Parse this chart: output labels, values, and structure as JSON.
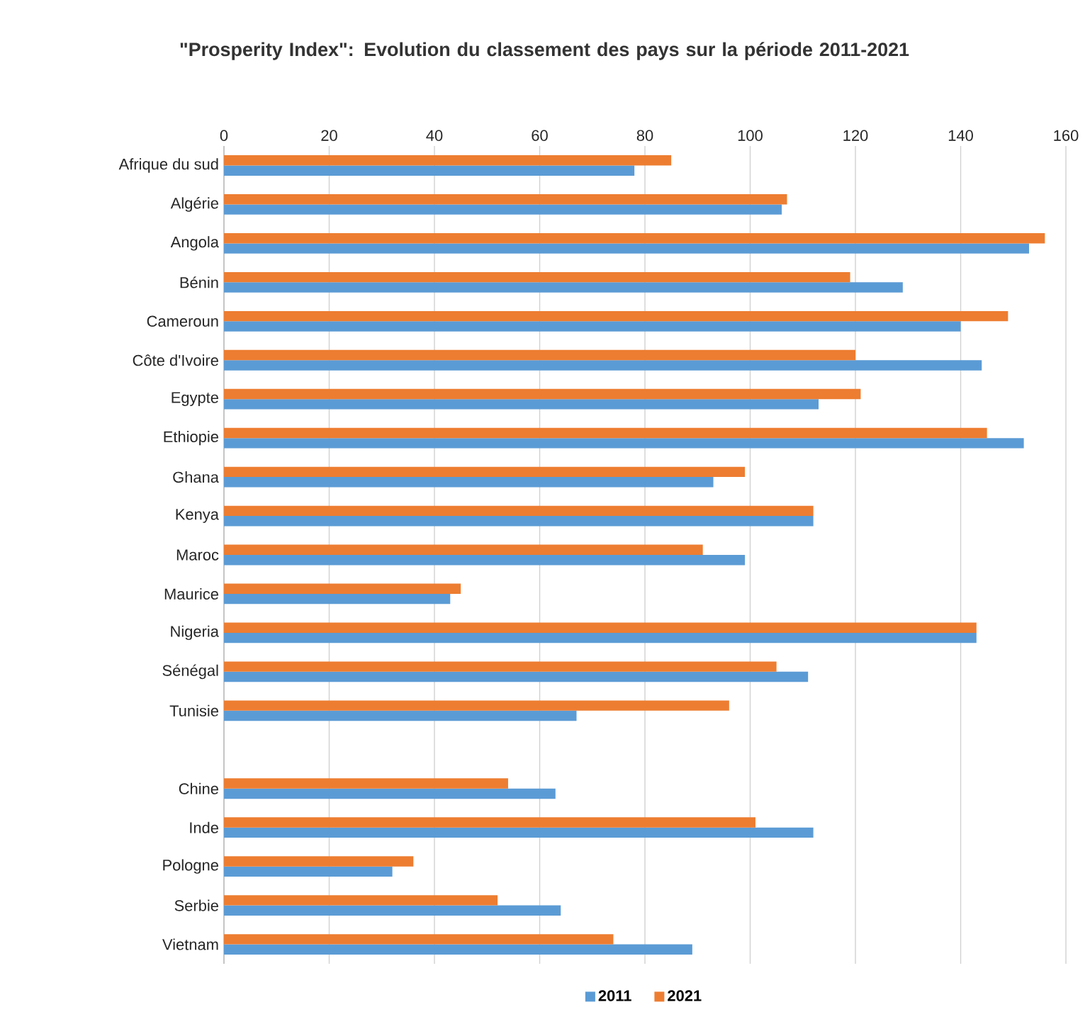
{
  "chart_data": {
    "type": "bar",
    "orientation": "horizontal",
    "title": "\"Prosperity Index\": Evolution du classement des pays sur la période 2011-2021",
    "categories": [
      "Afrique du sud",
      "Algérie",
      "Angola",
      "Bénin",
      "Cameroun",
      "Côte d'Ivoire",
      "Egypte",
      "Ethiopie",
      "Ghana",
      "Kenya",
      "Maroc",
      "Maurice",
      "Nigeria",
      "Sénégal",
      "Tunisie",
      null,
      "Chine",
      "Inde",
      "Pologne",
      "Serbie",
      "Vietnam"
    ],
    "series": [
      {
        "name": "2011",
        "color": "#5b9bd5",
        "values": [
          78,
          106,
          153,
          129,
          140,
          144,
          113,
          152,
          93,
          112,
          99,
          43,
          143,
          111,
          67,
          null,
          63,
          112,
          32,
          64,
          89
        ]
      },
      {
        "name": "2021",
        "color": "#ed7d31",
        "values": [
          85,
          107,
          156,
          119,
          149,
          120,
          121,
          145,
          99,
          112,
          91,
          45,
          143,
          105,
          96,
          null,
          54,
          101,
          36,
          52,
          74
        ]
      }
    ],
    "xlim": [
      0,
      160
    ],
    "xticks": [
      0,
      20,
      40,
      60,
      80,
      100,
      120,
      140,
      160
    ],
    "grid": "x",
    "legend": "bottom"
  }
}
